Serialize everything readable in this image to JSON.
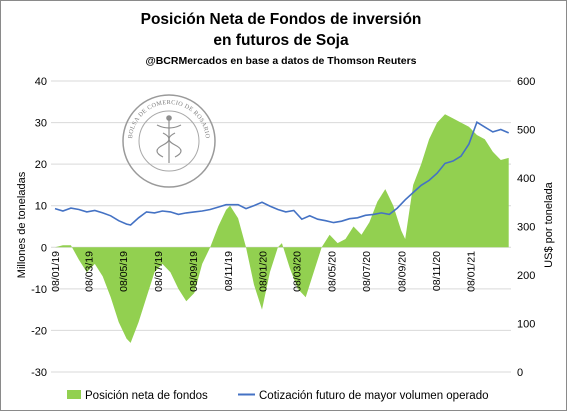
{
  "header": {
    "title_line1": "Posición Neta de Fondos de inversión",
    "title_line2": "en futuros de Soja",
    "subtitle": "@BCRMercados  en base a datos de Thomson Reuters"
  },
  "watermark": {
    "text": "BOLSA DE COMERCIO DE ROSARIO"
  },
  "chart_data": {
    "type": "area+line",
    "y_left_ticks": [
      "40",
      "30",
      "20",
      "10",
      "0",
      "-10",
      "-20",
      "-30"
    ],
    "y_right_ticks": [
      "600",
      "500",
      "400",
      "300",
      "200",
      "100",
      "0"
    ],
    "x_ticks": [
      "08/01/19",
      "08/03/19",
      "08/05/19",
      "08/07/19",
      "08/09/19",
      "08/11/19",
      "08/01/20",
      "08/03/20",
      "08/05/20",
      "08/07/20",
      "08/09/20",
      "08/11/20",
      "08/01/21"
    ],
    "ylabel_left": "Millones de toneladas",
    "ylabel_right": "US$ por tonelada",
    "ylim_left": [
      -30,
      40
    ],
    "ylim_right": [
      0,
      600
    ],
    "grid": "horizontal",
    "legend_position": "bottom",
    "series": [
      {
        "name": "Posición neta de fondos",
        "type": "area",
        "color": "#92d050",
        "axis": "left",
        "points": [
          [
            "2019-01-08",
            0
          ],
          [
            "2019-01-22",
            0.5
          ],
          [
            "2019-02-05",
            0.5
          ],
          [
            "2019-02-19",
            -3
          ],
          [
            "2019-03-05",
            -6
          ],
          [
            "2019-03-19",
            -4
          ],
          [
            "2019-04-02",
            -7
          ],
          [
            "2019-04-16",
            -12
          ],
          [
            "2019-04-30",
            -18
          ],
          [
            "2019-05-14",
            -22
          ],
          [
            "2019-05-21",
            -23
          ],
          [
            "2019-06-04",
            -18
          ],
          [
            "2019-06-18",
            -12
          ],
          [
            "2019-07-02",
            -6
          ],
          [
            "2019-07-16",
            -4
          ],
          [
            "2019-07-30",
            -6
          ],
          [
            "2019-08-13",
            -10
          ],
          [
            "2019-08-27",
            -13
          ],
          [
            "2019-09-10",
            -11
          ],
          [
            "2019-09-24",
            -4
          ],
          [
            "2019-10-08",
            0
          ],
          [
            "2019-10-22",
            5
          ],
          [
            "2019-11-05",
            9
          ],
          [
            "2019-11-12",
            10
          ],
          [
            "2019-11-26",
            7
          ],
          [
            "2019-12-10",
            0
          ],
          [
            "2019-12-24",
            -9
          ],
          [
            "2020-01-07",
            -15
          ],
          [
            "2020-01-21",
            -6
          ],
          [
            "2020-02-04",
            0
          ],
          [
            "2020-02-11",
            1
          ],
          [
            "2020-02-25",
            -5
          ],
          [
            "2020-03-10",
            -10
          ],
          [
            "2020-03-24",
            -12
          ],
          [
            "2020-04-07",
            -6
          ],
          [
            "2020-04-21",
            0
          ],
          [
            "2020-05-05",
            3
          ],
          [
            "2020-05-19",
            1
          ],
          [
            "2020-06-02",
            2
          ],
          [
            "2020-06-16",
            5
          ],
          [
            "2020-06-30",
            3
          ],
          [
            "2020-07-14",
            6
          ],
          [
            "2020-07-28",
            11
          ],
          [
            "2020-08-11",
            14
          ],
          [
            "2020-08-25",
            10
          ],
          [
            "2020-09-08",
            4
          ],
          [
            "2020-09-15",
            2
          ],
          [
            "2020-09-29",
            15
          ],
          [
            "2020-10-13",
            20
          ],
          [
            "2020-10-27",
            26
          ],
          [
            "2020-11-10",
            30
          ],
          [
            "2020-11-24",
            32
          ],
          [
            "2020-12-08",
            31
          ],
          [
            "2020-12-22",
            30
          ],
          [
            "2021-01-05",
            29
          ],
          [
            "2021-01-19",
            27
          ],
          [
            "2021-02-02",
            26
          ],
          [
            "2021-02-16",
            23
          ],
          [
            "2021-03-02",
            21
          ],
          [
            "2021-03-16",
            21.5
          ]
        ]
      },
      {
        "name": "Cotización futuro de mayor volumen operado",
        "type": "line",
        "color": "#4472c4",
        "axis": "right",
        "points": [
          [
            "2019-01-08",
            337
          ],
          [
            "2019-01-22",
            332
          ],
          [
            "2019-02-05",
            338
          ],
          [
            "2019-02-19",
            335
          ],
          [
            "2019-03-05",
            330
          ],
          [
            "2019-03-19",
            333
          ],
          [
            "2019-04-02",
            328
          ],
          [
            "2019-04-16",
            322
          ],
          [
            "2019-04-30",
            312
          ],
          [
            "2019-05-14",
            305
          ],
          [
            "2019-05-21",
            303
          ],
          [
            "2019-06-04",
            318
          ],
          [
            "2019-06-18",
            330
          ],
          [
            "2019-07-02",
            328
          ],
          [
            "2019-07-16",
            332
          ],
          [
            "2019-07-30",
            330
          ],
          [
            "2019-08-13",
            325
          ],
          [
            "2019-08-27",
            328
          ],
          [
            "2019-09-10",
            330
          ],
          [
            "2019-09-24",
            332
          ],
          [
            "2019-10-08",
            335
          ],
          [
            "2019-10-22",
            340
          ],
          [
            "2019-11-05",
            345
          ],
          [
            "2019-11-26",
            345
          ],
          [
            "2019-12-10",
            337
          ],
          [
            "2019-12-24",
            343
          ],
          [
            "2020-01-07",
            350
          ],
          [
            "2020-01-21",
            342
          ],
          [
            "2020-02-04",
            335
          ],
          [
            "2020-02-18",
            330
          ],
          [
            "2020-03-03",
            333
          ],
          [
            "2020-03-17",
            315
          ],
          [
            "2020-03-31",
            322
          ],
          [
            "2020-04-14",
            315
          ],
          [
            "2020-04-28",
            312
          ],
          [
            "2020-05-12",
            308
          ],
          [
            "2020-05-26",
            311
          ],
          [
            "2020-06-09",
            316
          ],
          [
            "2020-06-23",
            318
          ],
          [
            "2020-07-07",
            323
          ],
          [
            "2020-07-21",
            325
          ],
          [
            "2020-08-04",
            328
          ],
          [
            "2020-08-18",
            325
          ],
          [
            "2020-09-01",
            338
          ],
          [
            "2020-09-15",
            355
          ],
          [
            "2020-09-29",
            370
          ],
          [
            "2020-10-13",
            385
          ],
          [
            "2020-10-27",
            395
          ],
          [
            "2020-11-10",
            410
          ],
          [
            "2020-11-24",
            430
          ],
          [
            "2020-12-08",
            435
          ],
          [
            "2020-12-22",
            445
          ],
          [
            "2021-01-05",
            470
          ],
          [
            "2021-01-19",
            515
          ],
          [
            "2021-02-02",
            505
          ],
          [
            "2021-02-16",
            495
          ],
          [
            "2021-03-02",
            500
          ],
          [
            "2021-03-16",
            493
          ]
        ]
      }
    ]
  }
}
